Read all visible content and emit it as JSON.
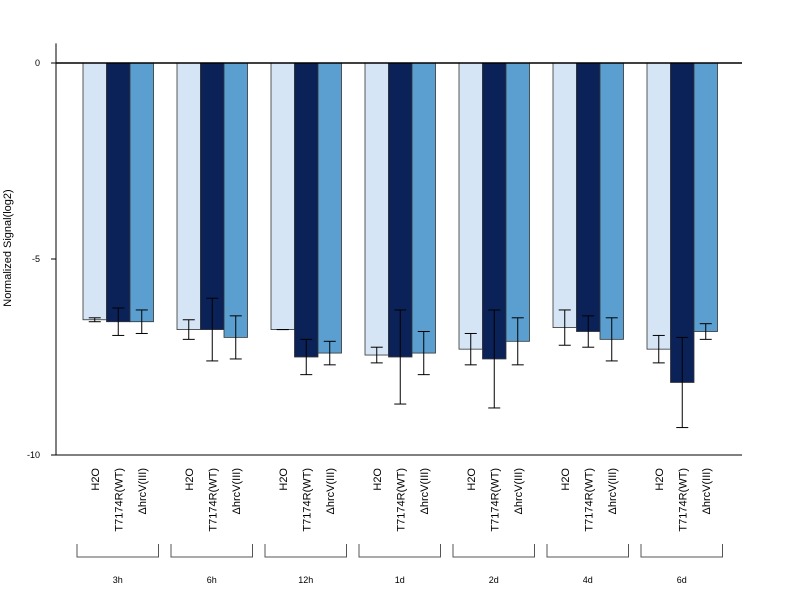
{
  "chart_data": {
    "type": "bar",
    "title": "",
    "xlabel": "",
    "ylabel": "Normalized Signal(log2)",
    "ylim": [
      -10,
      0.5
    ],
    "yticks": [
      0,
      -5,
      -10
    ],
    "grid": false,
    "legend": "none",
    "bar_labels": [
      "H2O",
      "T7174R(WT)",
      "ΔhrcV(III)"
    ],
    "colors": [
      "#d6e5f5",
      "#0b2259",
      "#5a9fcf"
    ],
    "groups": [
      {
        "label": "3h",
        "values": [
          -6.55,
          -6.6,
          -6.6
        ],
        "errors": [
          0.05,
          0.35,
          0.3
        ]
      },
      {
        "label": "6h",
        "values": [
          -6.8,
          -6.8,
          -7.0
        ],
        "errors": [
          0.25,
          0.8,
          0.55
        ]
      },
      {
        "label": "12h",
        "values": [
          -6.8,
          -7.5,
          -7.4
        ],
        "errors": [
          0.0,
          0.45,
          0.3
        ]
      },
      {
        "label": "1d",
        "values": [
          -7.45,
          -7.5,
          -7.4
        ],
        "errors": [
          0.2,
          1.2,
          0.55
        ]
      },
      {
        "label": "2d",
        "values": [
          -7.3,
          -7.55,
          -7.1
        ],
        "errors": [
          0.4,
          1.25,
          0.6
        ]
      },
      {
        "label": "4d",
        "values": [
          -6.75,
          -6.85,
          -7.05
        ],
        "errors": [
          0.45,
          0.4,
          0.55
        ]
      },
      {
        "label": "6d",
        "values": [
          -7.3,
          -8.15,
          -6.85
        ],
        "errors": [
          0.35,
          1.15,
          0.2
        ]
      }
    ]
  }
}
